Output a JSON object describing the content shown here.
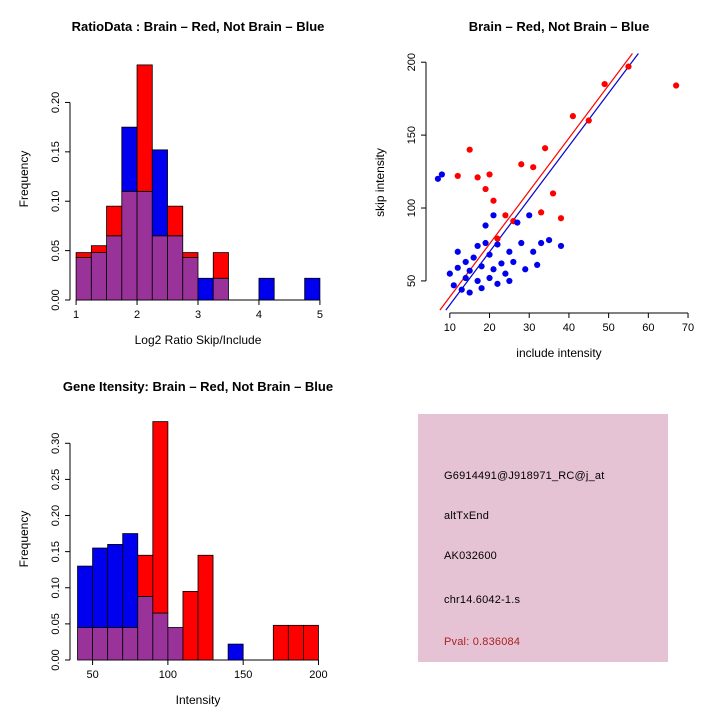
{
  "info_box": {
    "bg_color": "#e6c3d4",
    "pval_color": "#aa2222",
    "lines": [
      "G6914491@J918971_RC@j_at",
      "altTxEnd",
      "AK032600",
      "chr14.6042-1.s"
    ],
    "pval": "Pval: 0.836084"
  },
  "colors": {
    "brain_red": "#ff0000",
    "not_brain_blue": "#0000ee",
    "overlap_purple": "#993399",
    "axis_black": "#000000"
  },
  "chart_data": [
    {
      "panel": "top-left",
      "type": "bar",
      "subtype": "overlaid_histogram",
      "title": "RatioData : Brain – Red, Not Brain – Blue",
      "xlabel": "Log2 Ratio Skip/Include",
      "ylabel": "Frequency",
      "bin_start": 1.0,
      "bin_width": 0.25,
      "xlim": [
        0.9,
        5.1
      ],
      "ylim": [
        0,
        0.245
      ],
      "xticks": [
        1,
        2,
        3,
        4,
        5
      ],
      "xtick_labels": [
        "1",
        "2",
        "3",
        "4",
        "5"
      ],
      "yticks": [
        0,
        0.05,
        0.1,
        0.15,
        0.2
      ],
      "ytick_labels": [
        "0.00",
        "0.05",
        "0.10",
        "0.15",
        "0.20"
      ],
      "overlap_color": "#993399",
      "series": [
        {
          "name": "Brain (red)",
          "color": "#ff0000",
          "values": [
            0.048,
            0.055,
            0.095,
            0.11,
            0.238,
            0.065,
            0.095,
            0.048,
            0,
            0.048,
            0,
            0,
            0,
            0,
            0,
            0
          ]
        },
        {
          "name": "Not Brain (blue)",
          "color": "#0000ee",
          "values": [
            0.043,
            0.048,
            0.065,
            0.175,
            0.11,
            0.152,
            0.065,
            0.043,
            0.022,
            0.022,
            0,
            0,
            0.022,
            0,
            0,
            0.022
          ]
        }
      ]
    },
    {
      "panel": "top-right",
      "type": "scatter",
      "title": "Brain – Red, Not Brain – Blue",
      "xlabel": "include intensity",
      "ylabel": "skip intensity",
      "xlim": [
        4,
        71
      ],
      "ylim": [
        28,
        207
      ],
      "xticks": [
        10,
        20,
        30,
        40,
        50,
        60,
        70
      ],
      "xtick_labels": [
        "10",
        "20",
        "30",
        "40",
        "50",
        "60",
        "70"
      ],
      "yticks": [
        50,
        100,
        150,
        200
      ],
      "ytick_labels": [
        "50",
        "100",
        "150",
        "200"
      ],
      "series": [
        {
          "name": "Brain",
          "color": "#ff0000",
          "points": [
            [
              12,
              122
            ],
            [
              15,
              140
            ],
            [
              17,
              121
            ],
            [
              19,
              113
            ],
            [
              20,
              123
            ],
            [
              21,
              105
            ],
            [
              24,
              95
            ],
            [
              26,
              91
            ],
            [
              28,
              130
            ],
            [
              31,
              128
            ],
            [
              33,
              97
            ],
            [
              36,
              110
            ],
            [
              38,
              93
            ],
            [
              41,
              163
            ],
            [
              45,
              160
            ],
            [
              49,
              185
            ],
            [
              55,
              197
            ],
            [
              67,
              184
            ],
            [
              22,
              79
            ],
            [
              34,
              141
            ]
          ]
        },
        {
          "name": "Not Brain",
          "color": "#0000ee",
          "points": [
            [
              7,
              120
            ],
            [
              8,
              123
            ],
            [
              10,
              55
            ],
            [
              11,
              47
            ],
            [
              12,
              59
            ],
            [
              12,
              70
            ],
            [
              13,
              44
            ],
            [
              14,
              52
            ],
            [
              14,
              63
            ],
            [
              15,
              57
            ],
            [
              15,
              42
            ],
            [
              16,
              66
            ],
            [
              17,
              50
            ],
            [
              17,
              74
            ],
            [
              18,
              60
            ],
            [
              18,
              45
            ],
            [
              19,
              76
            ],
            [
              19,
              88
            ],
            [
              20,
              68
            ],
            [
              20,
              52
            ],
            [
              21,
              58
            ],
            [
              21,
              95
            ],
            [
              22,
              75
            ],
            [
              22,
              48
            ],
            [
              23,
              62
            ],
            [
              24,
              55
            ],
            [
              25,
              70
            ],
            [
              25,
              50
            ],
            [
              26,
              63
            ],
            [
              27,
              90
            ],
            [
              28,
              76
            ],
            [
              29,
              58
            ],
            [
              30,
              95
            ],
            [
              31,
              70
            ],
            [
              32,
              61
            ],
            [
              33,
              76
            ],
            [
              35,
              78
            ],
            [
              38,
              74
            ]
          ]
        }
      ],
      "fit_lines": [
        {
          "name": "brain-fit-line",
          "color": "#ff0000",
          "from": [
            7.5,
            30
          ],
          "to": [
            56,
            206
          ]
        },
        {
          "name": "notbrain-fit-line",
          "color": "#0000cc",
          "from": [
            9,
            30
          ],
          "to": [
            57.5,
            206
          ]
        }
      ]
    },
    {
      "panel": "bottom-left",
      "type": "bar",
      "subtype": "overlaid_histogram",
      "title": "Gene Itensity: Brain – Red, Not Brain – Blue",
      "xlabel": "Intensity",
      "ylabel": "Frequency",
      "bin_start": 40,
      "bin_width": 10,
      "xlim": [
        35,
        205
      ],
      "ylim": [
        0,
        0.335
      ],
      "xticks": [
        50,
        100,
        150,
        200
      ],
      "xtick_labels": [
        "50",
        "100",
        "150",
        "200"
      ],
      "yticks": [
        0,
        0.05,
        0.1,
        0.15,
        0.2,
        0.25,
        0.3
      ],
      "ytick_labels": [
        "0.00",
        "0.05",
        "0.10",
        "0.15",
        "0.20",
        "0.25",
        "0.30"
      ],
      "overlap_color": "#993399",
      "series": [
        {
          "name": "Brain (red)",
          "color": "#ff0000",
          "values": [
            0.045,
            0.045,
            0.045,
            0.045,
            0.145,
            0.33,
            0.045,
            0.095,
            0.145,
            0,
            0,
            0,
            0,
            0.048,
            0.048,
            0.048
          ]
        },
        {
          "name": "Not Brain (blue)",
          "color": "#0000ee",
          "values": [
            0.13,
            0.155,
            0.16,
            0.175,
            0.088,
            0.065,
            0.045,
            0,
            0,
            0,
            0.022,
            0,
            0,
            0,
            0,
            0
          ]
        }
      ]
    }
  ]
}
